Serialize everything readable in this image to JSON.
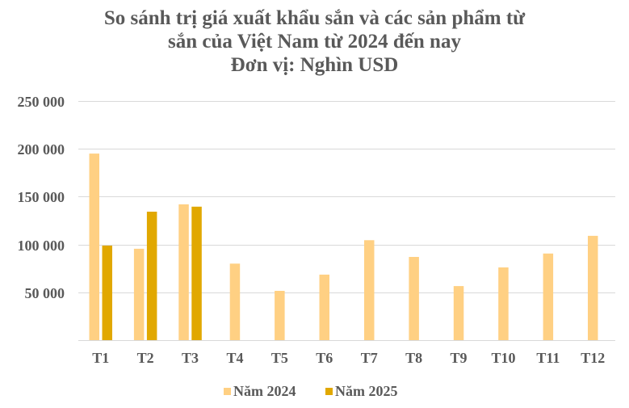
{
  "title": {
    "line1": "So sánh trị giá xuất khẩu sắn và các sản phẩm từ",
    "line2": "sắn của Việt Nam từ 2024 đến nay",
    "line3": "Đơn vị: Nghìn USD"
  },
  "colors": {
    "series_2024": "#FFD083",
    "series_2025": "#E1A800",
    "grid": "#D9D9D9",
    "text": "#595959"
  },
  "legend": {
    "items": [
      {
        "label": "Năm 2024",
        "color": "#FFD083"
      },
      {
        "label": "Năm 2025",
        "color": "#E1A800"
      }
    ]
  },
  "chart_data": {
    "type": "bar",
    "title": "So sánh trị giá xuất khẩu sắn và các sản phẩm từ sắn của Việt Nam từ 2024 đến nay",
    "subtitle": "Đơn vị: Nghìn USD",
    "xlabel": "",
    "ylabel": "",
    "categories": [
      "T1",
      "T2",
      "T3",
      "T4",
      "T5",
      "T6",
      "T7",
      "T8",
      "T9",
      "T10",
      "T11",
      "T12"
    ],
    "series": [
      {
        "name": "Năm 2024",
        "values": [
          195000,
          95500,
          142000,
          80000,
          51500,
          68500,
          104500,
          87000,
          56500,
          76000,
          90500,
          109000
        ]
      },
      {
        "name": "Năm 2025",
        "values": [
          98800,
          134300,
          139500,
          null,
          null,
          null,
          null,
          null,
          null,
          null,
          null,
          null
        ]
      }
    ],
    "yticks": [
      "",
      "50 000",
      "100 000",
      "150 000",
      "200 000",
      "250 000"
    ],
    "ylim": [
      0,
      250000
    ],
    "grid": true,
    "legend_position": "bottom"
  }
}
